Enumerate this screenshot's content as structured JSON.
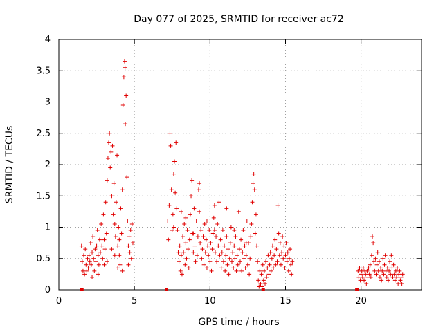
{
  "chart_data": {
    "type": "scatter",
    "title": "Day 077 of 2025, SRMTID for receiver ac72",
    "xlabel": "GPS time / hours",
    "ylabel": "SRMTID / TECUs",
    "xlim": [
      0,
      24
    ],
    "ylim": [
      0,
      4
    ],
    "xticks": [
      0,
      5,
      10,
      15,
      20
    ],
    "yticks": [
      0,
      0.5,
      1,
      1.5,
      2,
      2.5,
      3,
      3.5,
      4
    ],
    "xtick_labels": [
      "0",
      "5",
      "10",
      "15",
      "20"
    ],
    "ytick_labels": [
      "0",
      "0.5",
      "1",
      "1.5",
      "2",
      "2.5",
      "3",
      "3.5",
      "4"
    ],
    "grid": true,
    "marker": "plus",
    "color": "#e00000",
    "zero_markers_x": [
      1.5,
      7.1,
      13.5,
      19.7
    ],
    "series": [
      {
        "name": "SRMTID",
        "points": [
          [
            1.5,
            0.7
          ],
          [
            1.55,
            0.45
          ],
          [
            1.6,
            0.3
          ],
          [
            1.65,
            0.55
          ],
          [
            1.7,
            0.25
          ],
          [
            1.75,
            0.65
          ],
          [
            1.8,
            0.4
          ],
          [
            1.85,
            0.3
          ],
          [
            1.9,
            0.5
          ],
          [
            1.95,
            0.35
          ],
          [
            2.0,
            0.55
          ],
          [
            2.05,
            0.45
          ],
          [
            2.1,
            0.75
          ],
          [
            2.15,
            0.4
          ],
          [
            2.2,
            0.6
          ],
          [
            2.25,
            0.85
          ],
          [
            2.3,
            0.5
          ],
          [
            2.35,
            0.3
          ],
          [
            2.4,
            0.65
          ],
          [
            2.45,
            0.45
          ],
          [
            2.5,
            0.7
          ],
          [
            2.55,
            0.95
          ],
          [
            2.6,
            0.55
          ],
          [
            2.65,
            0.4
          ],
          [
            2.7,
            0.8
          ],
          [
            2.75,
            0.6
          ],
          [
            2.8,
            1.05
          ],
          [
            2.85,
            0.7
          ],
          [
            2.9,
            0.5
          ],
          [
            2.95,
            1.2
          ],
          [
            3.0,
            0.8
          ],
          [
            3.05,
            0.65
          ],
          [
            3.1,
            1.4
          ],
          [
            3.15,
            0.9
          ],
          [
            3.2,
            1.75
          ],
          [
            3.25,
            2.1
          ],
          [
            3.3,
            2.35
          ],
          [
            3.35,
            2.5
          ],
          [
            3.4,
            1.95
          ],
          [
            3.45,
            2.2
          ],
          [
            3.5,
            1.5
          ],
          [
            3.55,
            2.3
          ],
          [
            3.6,
            1.2
          ],
          [
            3.65,
            1.7
          ],
          [
            3.7,
            1.05
          ],
          [
            3.75,
            0.85
          ],
          [
            3.8,
            1.4
          ],
          [
            3.85,
            2.15
          ],
          [
            3.9,
            0.7
          ],
          [
            3.95,
            1.0
          ],
          [
            4.0,
            0.55
          ],
          [
            4.05,
            0.4
          ],
          [
            4.1,
            1.3
          ],
          [
            4.15,
            0.9
          ],
          [
            4.2,
            1.6
          ],
          [
            4.25,
            2.95
          ],
          [
            4.3,
            3.4
          ],
          [
            4.35,
            3.65
          ],
          [
            4.38,
            3.55
          ],
          [
            4.4,
            2.65
          ],
          [
            4.45,
            3.1
          ],
          [
            4.5,
            1.8
          ],
          [
            4.55,
            1.1
          ],
          [
            4.6,
            0.7
          ],
          [
            4.65,
            0.85
          ],
          [
            4.7,
            0.6
          ],
          [
            4.75,
            0.95
          ],
          [
            4.8,
            0.5
          ],
          [
            4.85,
            1.05
          ],
          [
            4.9,
            0.75
          ],
          [
            3.0,
            0.4
          ],
          [
            3.2,
            0.45
          ],
          [
            3.5,
            0.65
          ],
          [
            3.9,
            0.35
          ],
          [
            4.2,
            0.3
          ],
          [
            4.6,
            0.4
          ],
          [
            2.6,
            0.25
          ],
          [
            2.2,
            0.2
          ],
          [
            3.7,
            0.55
          ],
          [
            4.0,
            0.8
          ],
          [
            7.2,
            1.1
          ],
          [
            7.25,
            0.8
          ],
          [
            7.3,
            1.35
          ],
          [
            7.35,
            2.5
          ],
          [
            7.4,
            2.3
          ],
          [
            7.45,
            1.6
          ],
          [
            7.5,
            0.95
          ],
          [
            7.55,
            1.2
          ],
          [
            7.6,
            1.85
          ],
          [
            7.65,
            2.05
          ],
          [
            7.7,
            1.55
          ],
          [
            7.75,
            2.35
          ],
          [
            7.8,
            1.3
          ],
          [
            7.85,
            0.95
          ],
          [
            7.9,
            0.6
          ],
          [
            7.95,
            0.45
          ],
          [
            8.0,
            0.7
          ],
          [
            8.05,
            0.3
          ],
          [
            8.1,
            0.55
          ],
          [
            8.15,
            0.25
          ],
          [
            8.2,
            0.85
          ],
          [
            8.25,
            0.6
          ],
          [
            8.3,
            1.05
          ],
          [
            8.35,
            0.4
          ],
          [
            8.4,
            0.75
          ],
          [
            8.45,
            0.5
          ],
          [
            8.5,
            0.95
          ],
          [
            8.55,
            0.65
          ],
          [
            8.6,
            0.35
          ],
          [
            8.65,
            0.8
          ],
          [
            8.7,
            1.2
          ],
          [
            8.75,
            1.5
          ],
          [
            8.8,
            1.75
          ],
          [
            8.85,
            0.9
          ],
          [
            8.9,
            0.6
          ],
          [
            8.95,
            1.3
          ],
          [
            9.0,
            0.7
          ],
          [
            9.05,
            0.45
          ],
          [
            9.1,
            1.1
          ],
          [
            9.15,
            0.55
          ],
          [
            9.2,
            0.85
          ],
          [
            9.25,
            1.6
          ],
          [
            9.3,
            1.7
          ],
          [
            9.35,
            0.75
          ],
          [
            9.4,
            0.95
          ],
          [
            9.45,
            0.5
          ],
          [
            9.5,
            0.65
          ],
          [
            9.55,
            0.85
          ],
          [
            9.6,
            0.4
          ],
          [
            9.65,
            1.05
          ],
          [
            9.7,
            0.6
          ],
          [
            9.75,
            0.8
          ],
          [
            9.8,
            0.35
          ],
          [
            9.85,
            0.7
          ],
          [
            9.9,
            0.55
          ],
          [
            9.95,
            0.95
          ],
          [
            10.0,
            0.45
          ],
          [
            10.05,
            0.75
          ],
          [
            10.1,
            0.3
          ],
          [
            10.15,
            0.65
          ],
          [
            10.2,
            0.9
          ],
          [
            10.25,
            1.15
          ],
          [
            10.3,
            1.35
          ],
          [
            10.35,
            0.6
          ],
          [
            10.4,
            0.85
          ],
          [
            10.45,
            0.45
          ],
          [
            10.5,
            1.05
          ],
          [
            10.55,
            0.7
          ],
          [
            10.6,
            1.4
          ],
          [
            10.65,
            0.55
          ],
          [
            10.7,
            0.8
          ],
          [
            10.75,
            0.35
          ],
          [
            10.8,
            0.6
          ],
          [
            10.85,
            0.95
          ],
          [
            10.9,
            0.45
          ],
          [
            10.95,
            0.7
          ],
          [
            11.0,
            0.3
          ],
          [
            11.05,
            0.55
          ],
          [
            11.1,
            0.85
          ],
          [
            11.15,
            0.4
          ],
          [
            11.2,
            0.65
          ],
          [
            11.25,
            0.25
          ],
          [
            11.3,
            0.5
          ],
          [
            11.35,
            0.75
          ],
          [
            11.4,
            1.0
          ],
          [
            11.45,
            0.45
          ],
          [
            11.5,
            0.6
          ],
          [
            11.55,
            0.35
          ],
          [
            11.6,
            0.7
          ],
          [
            11.65,
            0.5
          ],
          [
            11.7,
            0.85
          ],
          [
            11.75,
            0.3
          ],
          [
            11.8,
            0.55
          ],
          [
            11.85,
            0.4
          ],
          [
            11.9,
            1.25
          ],
          [
            11.95,
            0.65
          ],
          [
            12.0,
            0.45
          ],
          [
            12.05,
            0.8
          ],
          [
            12.1,
            0.3
          ],
          [
            12.15,
            0.6
          ],
          [
            12.2,
            0.95
          ],
          [
            12.25,
            0.5
          ],
          [
            12.3,
            0.7
          ],
          [
            12.35,
            0.35
          ],
          [
            12.4,
            0.55
          ],
          [
            12.45,
            1.1
          ],
          [
            12.5,
            0.4
          ],
          [
            12.55,
            0.75
          ],
          [
            12.6,
            0.25
          ],
          [
            12.65,
            0.5
          ],
          [
            12.7,
            0.85
          ],
          [
            12.75,
            1.05
          ],
          [
            12.8,
            1.4
          ],
          [
            12.85,
            1.7
          ],
          [
            12.9,
            1.85
          ],
          [
            12.95,
            1.6
          ],
          [
            13.0,
            0.9
          ],
          [
            13.05,
            1.2
          ],
          [
            13.1,
            0.7
          ],
          [
            13.15,
            0.45
          ],
          [
            8.1,
            1.25
          ],
          [
            8.4,
            1.15
          ],
          [
            8.9,
            0.9
          ],
          [
            9.3,
            1.25
          ],
          [
            9.8,
            1.1
          ],
          [
            10.3,
            0.95
          ],
          [
            11.1,
            1.3
          ],
          [
            11.6,
            0.95
          ],
          [
            12.4,
            0.75
          ],
          [
            7.6,
            1.0
          ],
          [
            13.2,
            0.15
          ],
          [
            13.25,
            0.05
          ],
          [
            13.3,
            0.3
          ],
          [
            13.35,
            0.1
          ],
          [
            13.4,
            0.25
          ],
          [
            13.45,
            0.05
          ],
          [
            13.5,
            0.4
          ],
          [
            13.55,
            0.15
          ],
          [
            13.6,
            0.3
          ],
          [
            13.65,
            0.1
          ],
          [
            13.7,
            0.45
          ],
          [
            13.75,
            0.2
          ],
          [
            13.8,
            0.35
          ],
          [
            13.85,
            0.55
          ],
          [
            13.9,
            0.25
          ],
          [
            13.95,
            0.4
          ],
          [
            14.0,
            0.6
          ],
          [
            14.05,
            0.3
          ],
          [
            14.1,
            0.5
          ],
          [
            14.15,
            0.7
          ],
          [
            14.2,
            0.35
          ],
          [
            14.25,
            0.55
          ],
          [
            14.3,
            0.8
          ],
          [
            14.35,
            0.4
          ],
          [
            14.4,
            0.65
          ],
          [
            14.45,
            0.45
          ],
          [
            14.5,
            1.35
          ],
          [
            14.55,
            0.9
          ],
          [
            14.6,
            0.55
          ],
          [
            14.65,
            0.75
          ],
          [
            14.7,
            0.4
          ],
          [
            14.75,
            0.6
          ],
          [
            14.8,
            0.85
          ],
          [
            14.85,
            0.5
          ],
          [
            14.9,
            0.7
          ],
          [
            14.95,
            0.35
          ],
          [
            15.0,
            0.55
          ],
          [
            15.05,
            0.75
          ],
          [
            15.1,
            0.45
          ],
          [
            15.15,
            0.6
          ],
          [
            15.2,
            0.3
          ],
          [
            15.25,
            0.5
          ],
          [
            15.3,
            0.65
          ],
          [
            15.35,
            0.4
          ],
          [
            15.4,
            0.25
          ],
          [
            15.45,
            0.45
          ],
          [
            19.8,
            0.3
          ],
          [
            19.85,
            0.2
          ],
          [
            19.9,
            0.35
          ],
          [
            19.95,
            0.15
          ],
          [
            20.0,
            0.25
          ],
          [
            20.05,
            0.3
          ],
          [
            20.1,
            0.2
          ],
          [
            20.15,
            0.35
          ],
          [
            20.2,
            0.15
          ],
          [
            20.25,
            0.3
          ],
          [
            20.3,
            0.25
          ],
          [
            20.35,
            0.1
          ],
          [
            20.4,
            0.3
          ],
          [
            20.45,
            0.2
          ],
          [
            20.5,
            0.35
          ],
          [
            20.55,
            0.25
          ],
          [
            20.6,
            0.4
          ],
          [
            20.65,
            0.2
          ],
          [
            20.7,
            0.55
          ],
          [
            20.75,
            0.85
          ],
          [
            20.8,
            0.75
          ],
          [
            20.85,
            0.45
          ],
          [
            20.9,
            0.3
          ],
          [
            20.95,
            0.5
          ],
          [
            21.0,
            0.25
          ],
          [
            21.05,
            0.4
          ],
          [
            21.1,
            0.6
          ],
          [
            21.15,
            0.3
          ],
          [
            21.2,
            0.45
          ],
          [
            21.25,
            0.2
          ],
          [
            21.3,
            0.35
          ],
          [
            21.35,
            0.15
          ],
          [
            21.4,
            0.3
          ],
          [
            21.45,
            0.5
          ],
          [
            21.5,
            0.25
          ],
          [
            21.55,
            0.4
          ],
          [
            21.6,
            0.55
          ],
          [
            21.65,
            0.3
          ],
          [
            21.7,
            0.2
          ],
          [
            21.75,
            0.35
          ],
          [
            21.8,
            0.15
          ],
          [
            21.85,
            0.3
          ],
          [
            21.9,
            0.45
          ],
          [
            21.95,
            0.25
          ],
          [
            22.0,
            0.55
          ],
          [
            22.05,
            0.35
          ],
          [
            22.1,
            0.2
          ],
          [
            22.15,
            0.4
          ],
          [
            22.2,
            0.25
          ],
          [
            22.25,
            0.15
          ],
          [
            22.3,
            0.3
          ],
          [
            22.35,
            0.2
          ],
          [
            22.4,
            0.35
          ],
          [
            22.45,
            0.1
          ],
          [
            22.5,
            0.25
          ],
          [
            22.55,
            0.3
          ],
          [
            22.6,
            0.15
          ],
          [
            22.65,
            0.2
          ],
          [
            22.7,
            0.1
          ],
          [
            22.75,
            0.25
          ]
        ]
      }
    ]
  }
}
